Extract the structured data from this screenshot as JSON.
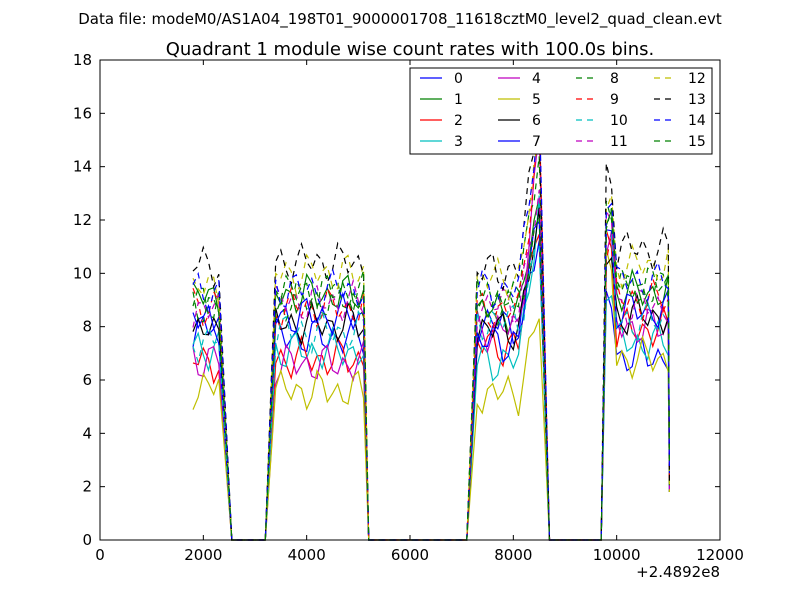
{
  "header": {
    "suptitle": "Data file: modeM0/AS1A04_198T01_9000001708_11618cztM0_level2_quad_clean.evt"
  },
  "chart_data": {
    "type": "line",
    "title": "Quadrant 1 module wise count rates with 100.0s bins.",
    "xlabel": "",
    "ylabel": "",
    "xlim": [
      0,
      12000
    ],
    "ylim": [
      0,
      18
    ],
    "x_offset_label": "+2.4892e8",
    "xticks": [
      0,
      2000,
      4000,
      6000,
      8000,
      10000,
      12000
    ],
    "xtick_labels": [
      "0",
      "2000",
      "4000",
      "6000",
      "8000",
      "10000",
      "12000"
    ],
    "yticks": [
      0,
      2,
      4,
      6,
      8,
      10,
      12,
      14,
      16,
      18
    ],
    "ytick_labels": [
      "0",
      "2",
      "4",
      "6",
      "8",
      "10",
      "12",
      "14",
      "16",
      "18"
    ],
    "grid": false,
    "legend_position": "top-right",
    "segments": [
      {
        "x_start": 1800,
        "x_end": 2350,
        "drop_to": 2550,
        "start_from": null
      },
      {
        "x_start": 3400,
        "x_end": 5100,
        "drop_to": 5200,
        "start_from": 3200
      },
      {
        "x_start": 7300,
        "x_end": 8500,
        "drop_to": 8700,
        "start_from": 7100
      },
      {
        "x_start": 9800,
        "x_end": 11000,
        "drop_to": null,
        "start_from": 9700
      }
    ],
    "series": [
      {
        "name": "0",
        "color": "#0000ff",
        "dash": false,
        "levels": [
          7.9,
          7.6,
          8.1,
          6.9
        ]
      },
      {
        "name": "1",
        "color": "#008000",
        "dash": false,
        "levels": [
          9.1,
          9.2,
          8.6,
          9.3
        ]
      },
      {
        "name": "2",
        "color": "#ff0000",
        "dash": false,
        "levels": [
          6.7,
          6.8,
          7.3,
          7.9
        ]
      },
      {
        "name": "3",
        "color": "#00bfbf",
        "dash": false,
        "levels": [
          7.2,
          7.1,
          6.7,
          7.4
        ]
      },
      {
        "name": "4",
        "color": "#bf00bf",
        "dash": false,
        "levels": [
          6.8,
          6.6,
          7.9,
          8.0
        ]
      },
      {
        "name": "5",
        "color": "#bfbf00",
        "dash": false,
        "levels": [
          5.7,
          5.6,
          5.5,
          6.8
        ]
      },
      {
        "name": "6",
        "color": "#000000",
        "dash": false,
        "levels": [
          7.8,
          8.1,
          7.9,
          8.4
        ]
      },
      {
        "name": "7",
        "color": "#0000ff",
        "dash": false,
        "levels": [
          8.2,
          8.4,
          7.4,
          8.6
        ]
      },
      {
        "name": "8",
        "color": "#008000",
        "dash": true,
        "levels": [
          9.0,
          9.0,
          8.9,
          9.4
        ]
      },
      {
        "name": "9",
        "color": "#ff0000",
        "dash": true,
        "levels": [
          8.8,
          8.7,
          8.6,
          9.0
        ]
      },
      {
        "name": "10",
        "color": "#00bfbf",
        "dash": true,
        "levels": [
          7.5,
          7.8,
          8.2,
          8.2
        ]
      },
      {
        "name": "11",
        "color": "#bf00bf",
        "dash": true,
        "levels": [
          8.6,
          8.9,
          8.8,
          8.8
        ]
      },
      {
        "name": "12",
        "color": "#bfbf00",
        "dash": true,
        "levels": [
          9.4,
          10.0,
          9.8,
          10.3
        ]
      },
      {
        "name": "13",
        "color": "#000000",
        "dash": true,
        "levels": [
          10.3,
          10.4,
          10.1,
          10.9
        ]
      },
      {
        "name": "14",
        "color": "#0000ff",
        "dash": true,
        "levels": [
          9.3,
          9.4,
          9.4,
          9.7
        ]
      },
      {
        "name": "15",
        "color": "#008000",
        "dash": true,
        "levels": [
          8.8,
          9.3,
          9.0,
          9.6
        ]
      }
    ]
  }
}
